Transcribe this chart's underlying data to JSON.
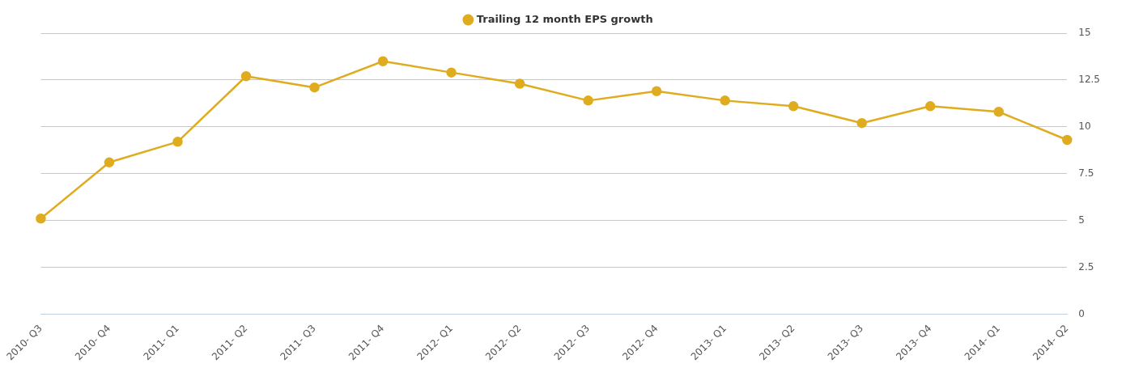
{
  "chart_data": {
    "type": "line",
    "categories": [
      "2010- Q3",
      "2010- Q4",
      "2011- Q1",
      "2011- Q2",
      "2011- Q3",
      "2011- Q4",
      "2012- Q1",
      "2012- Q2",
      "2012- Q3",
      "2012- Q4",
      "2013- Q1",
      "2013- Q2",
      "2013- Q3",
      "2013- Q4",
      "2014- Q1",
      "2014- Q2"
    ],
    "series": [
      {
        "name": "Trailing 12 month EPS growth",
        "color": "#e0ac1f",
        "values": [
          5.1,
          8.1,
          9.2,
          12.7,
          12.1,
          13.5,
          12.9,
          12.3,
          11.4,
          11.9,
          11.4,
          11.1,
          10.2,
          11.1,
          10.8,
          9.3
        ]
      }
    ],
    "ylim": [
      0,
      15
    ],
    "yticks": [
      0,
      2.5,
      5,
      7.5,
      10,
      12.5,
      15
    ],
    "grid": "y",
    "legend": "top",
    "marker": "circle",
    "line_style": "solid"
  }
}
